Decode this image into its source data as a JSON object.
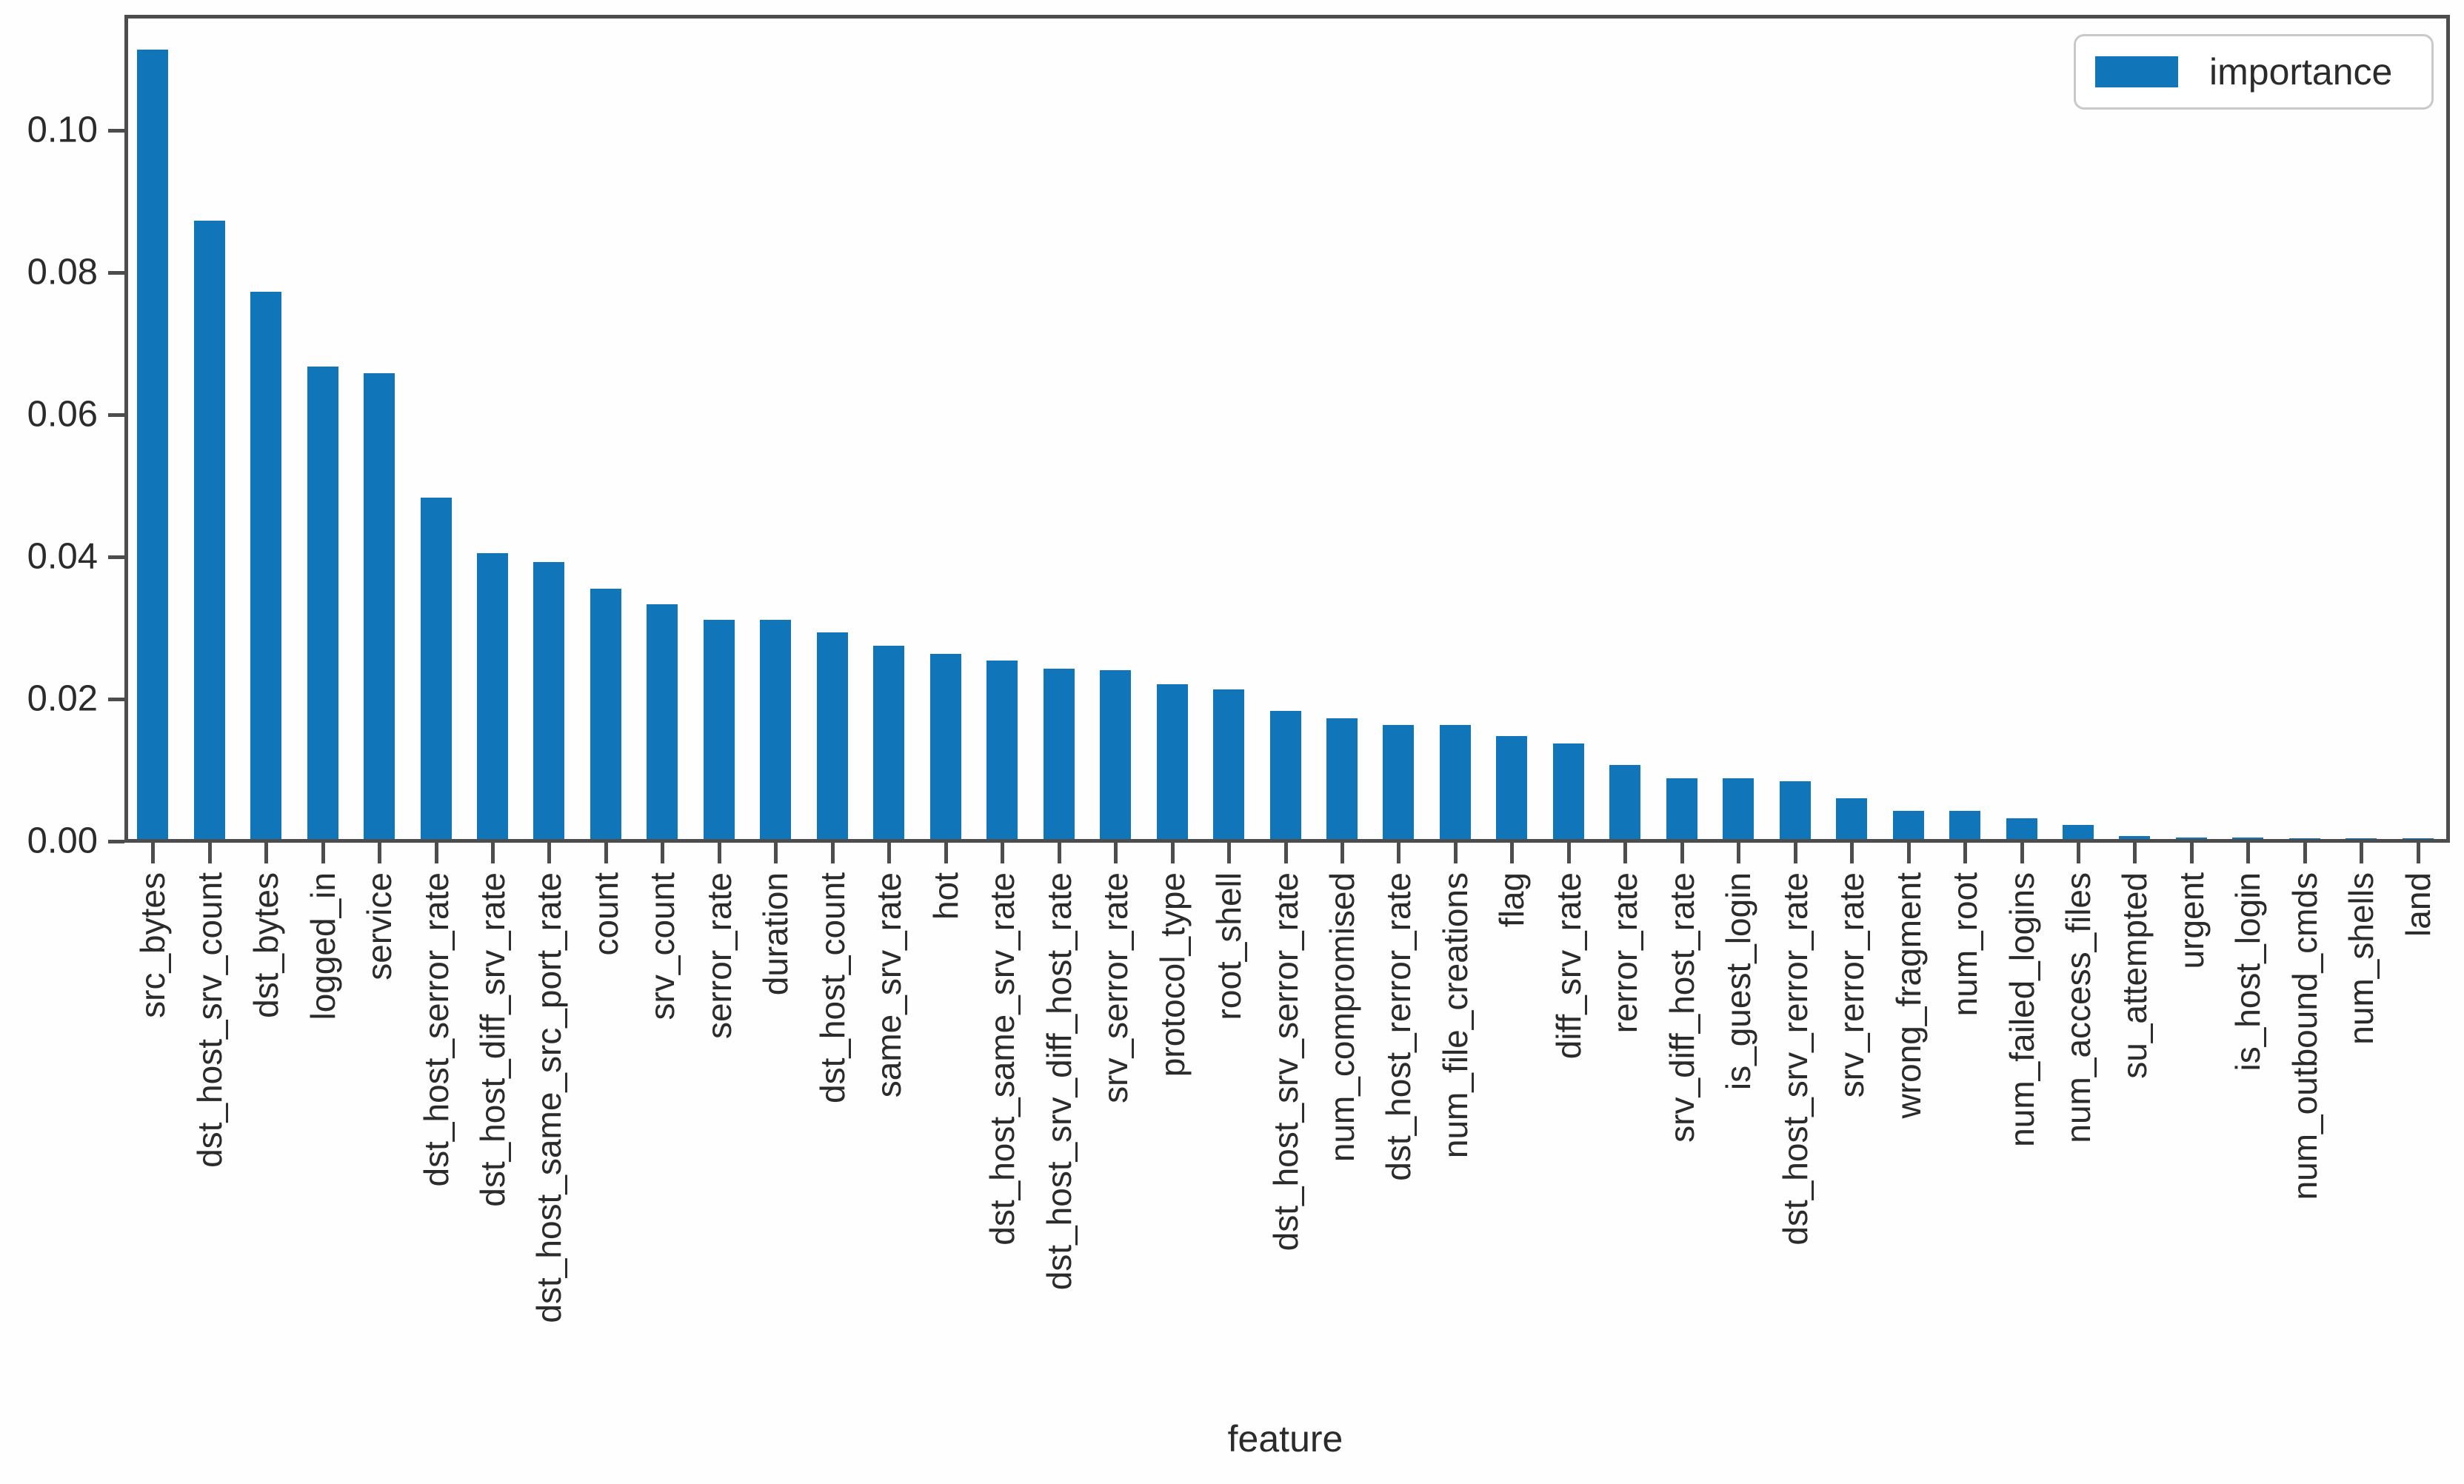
{
  "chart_data": {
    "type": "bar",
    "title": "",
    "xlabel": "feature",
    "ylabel": "",
    "legend_label": "importance",
    "legend_position": "upper right",
    "grid": false,
    "ylim": [
      0,
      0.116
    ],
    "yticks": [
      0.0,
      0.02,
      0.04,
      0.06,
      0.08,
      0.1
    ],
    "ytick_labels": [
      "0.00",
      "0.02",
      "0.04",
      "0.06",
      "0.08",
      "0.10"
    ],
    "categories": [
      "src_bytes",
      "dst_host_srv_count",
      "dst_bytes",
      "logged_in",
      "service",
      "dst_host_serror_rate",
      "dst_host_diff_srv_rate",
      "dst_host_same_src_port_rate",
      "count",
      "srv_count",
      "serror_rate",
      "duration",
      "dst_host_count",
      "same_srv_rate",
      "hot",
      "dst_host_same_srv_rate",
      "dst_host_srv_diff_host_rate",
      "srv_serror_rate",
      "protocol_type",
      "root_shell",
      "dst_host_srv_serror_rate",
      "num_compromised",
      "dst_host_rerror_rate",
      "num_file_creations",
      "flag",
      "diff_srv_rate",
      "rerror_rate",
      "srv_diff_host_rate",
      "is_guest_login",
      "dst_host_srv_rerror_rate",
      "srv_rerror_rate",
      "wrong_fragment",
      "num_root",
      "num_failed_logins",
      "num_access_files",
      "su_attempted",
      "urgent",
      "is_host_login",
      "num_outbound_cmds",
      "num_shells",
      "land"
    ],
    "values": [
      0.111,
      0.087,
      0.077,
      0.0665,
      0.0655,
      0.048,
      0.0402,
      0.039,
      0.0352,
      0.033,
      0.0308,
      0.0308,
      0.0291,
      0.0272,
      0.026,
      0.0251,
      0.024,
      0.0238,
      0.0218,
      0.021,
      0.018,
      0.017,
      0.016,
      0.016,
      0.0145,
      0.0134,
      0.0104,
      0.0085,
      0.0085,
      0.0081,
      0.0057,
      0.004,
      0.004,
      0.0029,
      0.002,
      0.0004,
      0.0002,
      0.0002,
      0.0001,
      0.0001,
      0.0001
    ],
    "colors": {
      "bar": "#1076b9",
      "text": "#2b2b2b",
      "spine": "#4d4d4d",
      "legend_border": "#c9c9c9",
      "background": "#ffffff"
    }
  }
}
